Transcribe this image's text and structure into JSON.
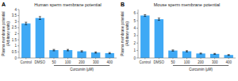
{
  "chart_data": [
    {
      "type": "bar",
      "title": "Human sperm membrane potential",
      "ylabel": "Plasma membrane potential\n(Arbitrary units)",
      "xlabel": "Curcumin (μM)",
      "panel_label": "A",
      "categories": [
        "Control",
        "DMSO",
        "50",
        "100",
        "200",
        "300",
        "400"
      ],
      "values": [
        2.85,
        3.3,
        0.65,
        0.65,
        0.55,
        0.45,
        0.4
      ],
      "errors": [
        0.1,
        0.12,
        0.06,
        0.06,
        0.05,
        0.05,
        0.05
      ],
      "color": "#3fa9f5",
      "ylim": [
        0,
        4.0
      ],
      "yticks": [
        0,
        0.5,
        1,
        1.5,
        2,
        2.5,
        3,
        3.5,
        4
      ]
    },
    {
      "type": "bar",
      "title": "Mouse sperm membrane potential",
      "ylabel": "Plasma membrane potential\n(Arbitrary units)",
      "xlabel": "Curcumin (μM)",
      "panel_label": "B",
      "categories": [
        "Control",
        "DMSO",
        "50",
        "100",
        "200",
        "300",
        "400"
      ],
      "values": [
        5.7,
        5.2,
        1.0,
        0.9,
        0.6,
        0.55,
        0.4
      ],
      "errors": [
        0.12,
        0.15,
        0.08,
        0.08,
        0.06,
        0.06,
        0.05
      ],
      "color": "#3fa9f5",
      "ylim": [
        0,
        6.5
      ],
      "yticks": [
        0,
        1,
        2,
        3,
        4,
        5,
        6
      ]
    }
  ]
}
